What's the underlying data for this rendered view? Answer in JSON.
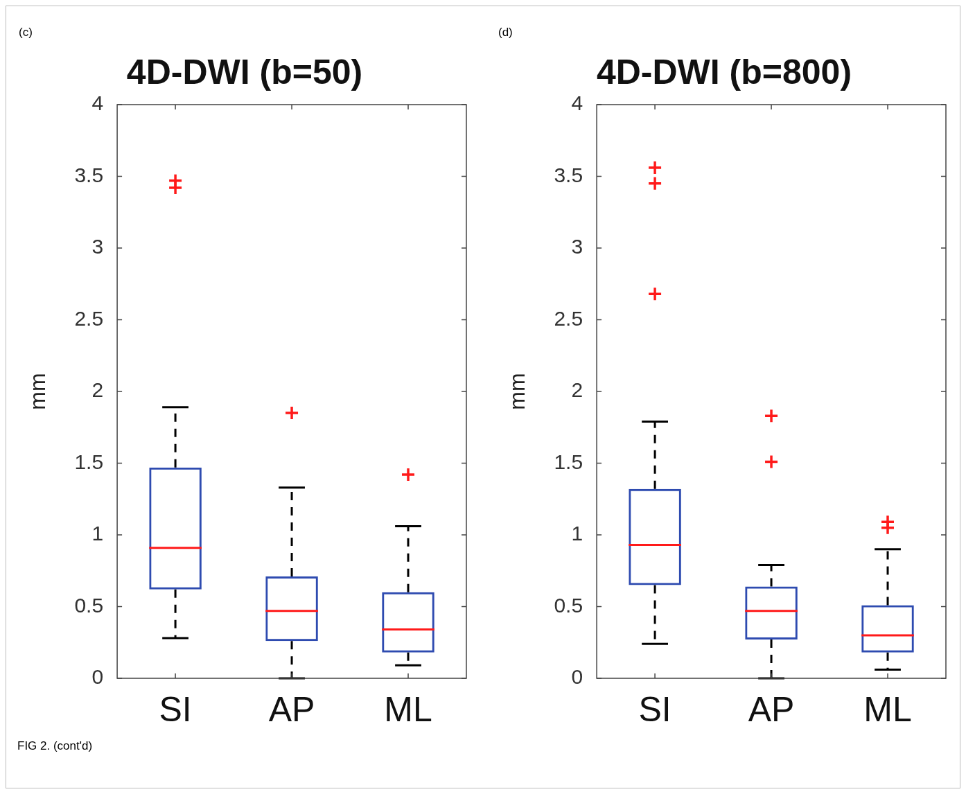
{
  "chart_data": [
    {
      "type": "box",
      "title": "4D-DWI (b=50)",
      "ylabel": "mm",
      "categories": [
        "SI",
        "AP",
        "ML"
      ],
      "ylim": [
        0,
        4
      ],
      "yticks": [
        0,
        0.5,
        1,
        1.5,
        2,
        2.5,
        3,
        3.5,
        4
      ],
      "grid": false,
      "legend": false,
      "marker": "cross",
      "annotations": [
        "(c)",
        "FIG 2. (cont'd)"
      ],
      "series": [
        {
          "color": "#2e4bb0",
          "boxes": [
            {
              "low": 0.28,
              "q1": 0.62,
              "median": 0.91,
              "q3": 1.47,
              "high": 1.89,
              "outliers": [
                3.47,
                3.42
              ]
            },
            {
              "low": 0,
              "q1": 0.26,
              "median": 0.47,
              "q3": 0.71,
              "high": 1.33,
              "outliers": [
                1.85
              ]
            },
            {
              "low": 0.09,
              "q1": 0.18,
              "median": 0.34,
              "q3": 0.6,
              "high": 1.06,
              "outliers": [
                1.42
              ]
            }
          ]
        }
      ]
    },
    {
      "type": "box",
      "title": "4D-DWI (b=800)",
      "ylabel": "mm",
      "categories": [
        "SI",
        "AP",
        "ML"
      ],
      "ylim": [
        0,
        4
      ],
      "yticks": [
        0,
        0.5,
        1,
        1.5,
        2,
        2.5,
        3,
        3.5,
        4
      ],
      "grid": false,
      "legend": false,
      "marker": "cross",
      "annotations": [
        "(d)"
      ],
      "series": [
        {
          "color": "#2e4bb0",
          "boxes": [
            {
              "low": 0.24,
              "q1": 0.65,
              "median": 0.93,
              "q3": 1.32,
              "high": 1.79,
              "outliers": [
                3.56,
                3.45,
                2.68
              ]
            },
            {
              "low": 0,
              "q1": 0.27,
              "median": 0.47,
              "q3": 0.64,
              "high": 0.79,
              "outliers": [
                1.83,
                1.51
              ]
            },
            {
              "low": 0.06,
              "q1": 0.18,
              "median": 0.3,
              "q3": 0.51,
              "high": 0.9,
              "outliers": [
                1.09,
                1.05
              ]
            }
          ]
        }
      ]
    }
  ]
}
